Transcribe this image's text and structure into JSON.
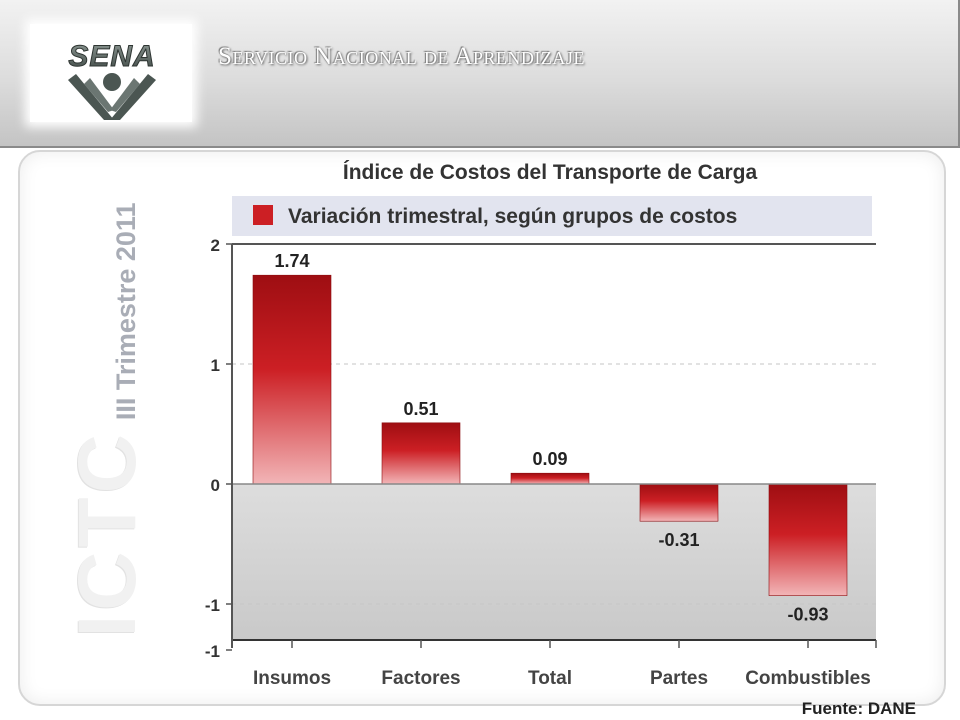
{
  "header": {
    "org_name": "Servicio Nacional de Aprendizaje",
    "logo_text": "SENA"
  },
  "watermark": {
    "big_text": "ICTC",
    "period": "III Trimestre 2011"
  },
  "source_note": "Fuente: DANE",
  "colors": {
    "bar": "#cc1f24",
    "bar_dark": "#9e0e12",
    "plot_bg_top": "#ffffff",
    "plot_bg_negative": "#d4d4d4",
    "legend_bg": "#e2e4ef"
  },
  "chart_data": {
    "type": "bar",
    "title": "Índice de Costos del Transporte de Carga",
    "legend": [
      "Variación trimestral, según grupos de costos"
    ],
    "legend_position": "top",
    "categories": [
      "Insumos",
      "Factores",
      "Total",
      "Partes",
      "Combustibles"
    ],
    "series": [
      {
        "name": "Variación trimestral, según grupos de costos",
        "values": [
          1.74,
          0.51,
          0.09,
          -0.31,
          -0.93
        ]
      }
    ],
    "data_labels": [
      "1.74",
      "0.51",
      "0.09",
      "-0.31",
      "-0.93"
    ],
    "y_ticks": [
      2,
      1,
      0,
      -1
    ],
    "ylim": [
      -1.3,
      2
    ],
    "grid": true
  }
}
